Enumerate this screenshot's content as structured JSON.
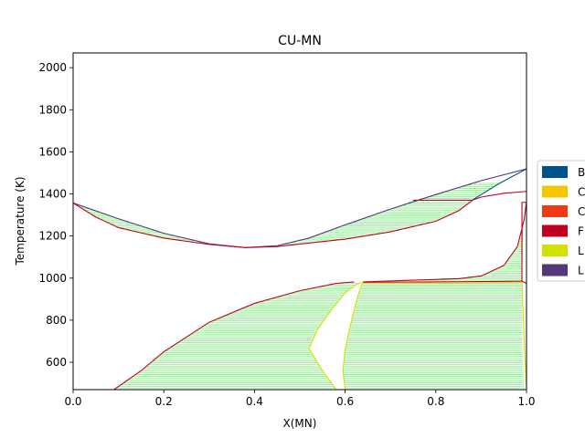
{
  "chart_data": {
    "type": "line",
    "title": "CU-MN",
    "xlabel": "X(MN)",
    "ylabel": "Temperature (K)",
    "xlim": [
      0,
      1
    ],
    "ylim": [
      470,
      2070
    ],
    "xticks": [
      0.0,
      0.2,
      0.4,
      0.6,
      0.8,
      1.0
    ],
    "xtick_labels": [
      "0.0",
      "0.2",
      "0.4",
      "0.6",
      "0.8",
      "1.0"
    ],
    "yticks": [
      600,
      800,
      1000,
      1200,
      1400,
      1600,
      1800,
      2000
    ],
    "ytick_labels": [
      "600",
      "800",
      "1000",
      "1200",
      "1400",
      "1600",
      "1800",
      "2000"
    ],
    "legend": {
      "placement": "right, partially cut off",
      "entries": [
        {
          "label": "B",
          "color": "#00538a"
        },
        {
          "label": "C",
          "color": "#f4c800"
        },
        {
          "label": "C",
          "color": "#f13a13"
        },
        {
          "label": "F",
          "color": "#c10020"
        },
        {
          "label": "L",
          "color": "#d2e200"
        },
        {
          "label": "L",
          "color": "#53377a"
        }
      ]
    },
    "tie_line_color": "#00e000",
    "series": [
      {
        "color": "#53377a",
        "points": [
          [
            0.0,
            1357
          ],
          [
            0.1,
            1282
          ],
          [
            0.2,
            1213
          ],
          [
            0.3,
            1163
          ],
          [
            0.38,
            1145
          ],
          [
            0.45,
            1154
          ],
          [
            0.52,
            1190
          ],
          [
            0.6,
            1253
          ],
          [
            0.7,
            1328
          ],
          [
            0.8,
            1397
          ],
          [
            0.9,
            1463
          ],
          [
            1.0,
            1519
          ]
        ]
      },
      {
        "color": "#c10020",
        "points": [
          [
            0.0,
            1357
          ],
          [
            0.05,
            1290
          ],
          [
            0.1,
            1240
          ],
          [
            0.2,
            1190
          ],
          [
            0.3,
            1160
          ],
          [
            0.38,
            1145
          ],
          [
            0.45,
            1150
          ],
          [
            0.5,
            1162
          ],
          [
            0.6,
            1185
          ],
          [
            0.7,
            1220
          ],
          [
            0.8,
            1270
          ],
          [
            0.85,
            1320
          ],
          [
            0.88,
            1368
          ]
        ]
      },
      {
        "color": "#c10020",
        "points": [
          [
            0.75,
            1370
          ],
          [
            0.88,
            1370
          ]
        ]
      },
      {
        "color": "#c10020",
        "points": [
          [
            0.88,
            1370
          ],
          [
            0.9,
            1385
          ],
          [
            0.95,
            1403
          ],
          [
            1.0,
            1412
          ]
        ]
      },
      {
        "color": "#00538a",
        "points": [
          [
            0.88,
            1370
          ],
          [
            0.94,
            1450
          ],
          [
            1.0,
            1519
          ]
        ]
      },
      {
        "color": "#c10020",
        "points": [
          [
            0.09,
            470
          ],
          [
            0.15,
            560
          ],
          [
            0.2,
            650
          ],
          [
            0.3,
            790
          ],
          [
            0.4,
            880
          ],
          [
            0.5,
            940
          ],
          [
            0.58,
            975
          ],
          [
            0.62,
            982
          ]
        ]
      },
      {
        "color": "#d2e200",
        "points": [
          [
            0.58,
            470
          ],
          [
            0.55,
            560
          ],
          [
            0.52,
            665
          ],
          [
            0.54,
            760
          ],
          [
            0.57,
            850
          ],
          [
            0.6,
            930
          ],
          [
            0.625,
            970
          ],
          [
            0.64,
            982
          ]
        ]
      },
      {
        "color": "#d2e200",
        "points": [
          [
            0.6,
            470
          ],
          [
            0.595,
            560
          ],
          [
            0.6,
            660
          ],
          [
            0.61,
            760
          ],
          [
            0.62,
            850
          ],
          [
            0.63,
            930
          ],
          [
            0.64,
            982
          ]
        ]
      },
      {
        "color": "#c10020",
        "points": [
          [
            0.64,
            982
          ],
          [
            0.75,
            990
          ],
          [
            0.85,
            997
          ],
          [
            0.9,
            1010
          ],
          [
            0.95,
            1060
          ],
          [
            0.98,
            1150
          ],
          [
            0.995,
            1280
          ],
          [
            1.0,
            1360
          ]
        ]
      },
      {
        "color": "#c10020",
        "points": [
          [
            0.64,
            980
          ],
          [
            0.99,
            985
          ]
        ]
      },
      {
        "color": "#d2e200",
        "points": [
          [
            0.64,
            975
          ],
          [
            0.99,
            980
          ]
        ]
      },
      {
        "color": "#c10020",
        "points": [
          [
            0.99,
            985
          ],
          [
            0.99,
            1360
          ],
          [
            1.0,
            1360
          ]
        ]
      },
      {
        "color": "#c10020",
        "points": [
          [
            0.99,
            985
          ],
          [
            1.0,
            975
          ]
        ]
      },
      {
        "color": "#d2e200",
        "points": [
          [
            0.99,
            980
          ],
          [
            0.995,
            700
          ],
          [
            1.0,
            470
          ]
        ]
      }
    ],
    "tie_line_regions": [
      {
        "name": "liquid-fcc-cu",
        "from_y": 1145,
        "to_y": 1357,
        "left": [
          [
            1145,
            0.38
          ],
          [
            1163,
            0.3
          ],
          [
            1213,
            0.2
          ],
          [
            1282,
            0.1
          ],
          [
            1357,
            0.0
          ]
        ],
        "right": [
          [
            1145,
            0.38
          ],
          [
            1160,
            0.3
          ],
          [
            1190,
            0.2
          ],
          [
            1240,
            0.1
          ],
          [
            1290,
            0.05
          ],
          [
            1357,
            0.0
          ]
        ]
      },
      {
        "name": "liquid-fcc-mn-side",
        "from_y": 1145,
        "to_y": 1370,
        "left": [
          [
            1145,
            0.38
          ],
          [
            1150,
            0.45
          ],
          [
            1162,
            0.5
          ],
          [
            1185,
            0.6
          ],
          [
            1220,
            0.7
          ],
          [
            1270,
            0.8
          ],
          [
            1320,
            0.85
          ],
          [
            1370,
            0.88
          ]
        ],
        "right": [
          [
            1145,
            0.38
          ],
          [
            1154,
            0.45
          ],
          [
            1190,
            0.52
          ],
          [
            1253,
            0.6
          ],
          [
            1328,
            0.7
          ],
          [
            1370,
            0.75
          ]
        ]
      },
      {
        "name": "liquid-bcc",
        "from_y": 1370,
        "to_y": 1450,
        "left": [
          [
            1370,
            0.75
          ],
          [
            1397,
            0.8
          ],
          [
            1450,
            0.88
          ]
        ],
        "right": [
          [
            1370,
            0.88
          ],
          [
            1450,
            0.94
          ]
        ]
      },
      {
        "name": "fcc-cbcc-left",
        "from_y": 470,
        "to_y": 980,
        "left": [
          [
            470,
            0.09
          ],
          [
            560,
            0.15
          ],
          [
            650,
            0.2
          ],
          [
            790,
            0.3
          ],
          [
            880,
            0.4
          ],
          [
            940,
            0.5
          ],
          [
            975,
            0.58
          ],
          [
            980,
            0.62
          ]
        ],
        "right": [
          [
            470,
            0.58
          ],
          [
            560,
            0.55
          ],
          [
            665,
            0.52
          ],
          [
            760,
            0.54
          ],
          [
            850,
            0.57
          ],
          [
            930,
            0.6
          ],
          [
            970,
            0.625
          ],
          [
            980,
            0.64
          ]
        ]
      },
      {
        "name": "cbcc-fcc-right",
        "from_y": 470,
        "to_y": 980,
        "left": [
          [
            470,
            0.6
          ],
          [
            560,
            0.595
          ],
          [
            660,
            0.6
          ],
          [
            760,
            0.61
          ],
          [
            850,
            0.62
          ],
          [
            930,
            0.63
          ],
          [
            980,
            0.64
          ]
        ],
        "right": [
          [
            470,
            0.995
          ],
          [
            700,
            0.99
          ],
          [
            980,
            0.99
          ]
        ]
      },
      {
        "name": "fcc-mn-top",
        "from_y": 990,
        "to_y": 1360,
        "left": [
          [
            990,
            0.75
          ],
          [
            1010,
            0.9
          ],
          [
            1060,
            0.95
          ],
          [
            1150,
            0.98
          ],
          [
            1280,
            0.995
          ],
          [
            1360,
            1.0
          ]
        ],
        "right": [
          [
            990,
            0.99
          ],
          [
            1360,
            0.995
          ]
        ]
      }
    ]
  }
}
